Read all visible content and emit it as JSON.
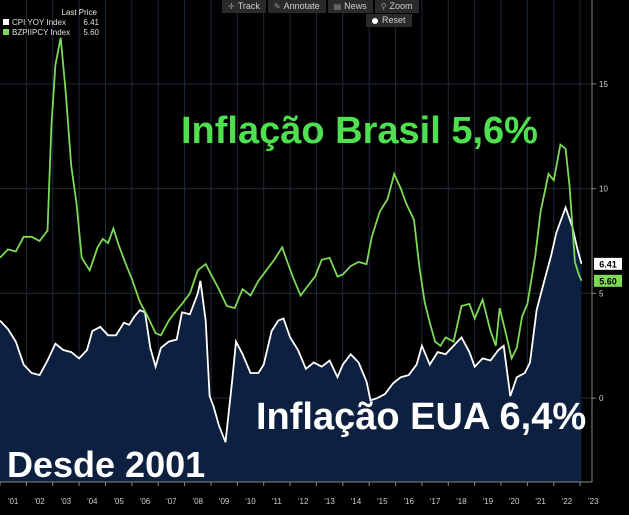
{
  "toolbar": {
    "track_label": "Track",
    "annotate_label": "Annotate",
    "news_label": "News",
    "zoom_label": "Zoom",
    "reset_label": "Reset"
  },
  "legend": {
    "title": "Last Price",
    "items": [
      {
        "name": "CPI YOY Index",
        "value": "6.41",
        "color": "#ffffff"
      },
      {
        "name": "BZPIIPCY Index",
        "value": "5.60",
        "color": "#7ed957"
      }
    ]
  },
  "annotations": {
    "brazil": "Inflação Brasil 5,6%",
    "usa": "Inflação EUA 6,4%",
    "since": "Desde 2001"
  },
  "chart_data": {
    "type": "line",
    "x_tick_labels": [
      "'01",
      "'02",
      "'03",
      "'04",
      "'05",
      "'06",
      "'07",
      "'08",
      "'09",
      "'10",
      "'11",
      "'12",
      "'13",
      "'14",
      "'15",
      "'16",
      "'17",
      "'18",
      "'19",
      "'20",
      "'21",
      "'22",
      "'23"
    ],
    "y_tick_labels": [
      "0",
      "5",
      "10",
      "15"
    ],
    "ylim": [
      -4,
      19
    ],
    "grid": true,
    "legend": "top-left",
    "series": [
      {
        "name": "CPI YOY Index",
        "color": "#ffffff",
        "fill": "#0d2040",
        "last_value": "6.41",
        "points": [
          [
            2001.0,
            3.7
          ],
          [
            2001.3,
            3.3
          ],
          [
            2001.6,
            2.7
          ],
          [
            2001.9,
            1.6
          ],
          [
            2002.2,
            1.2
          ],
          [
            2002.5,
            1.1
          ],
          [
            2002.8,
            1.8
          ],
          [
            2003.1,
            2.6
          ],
          [
            2003.4,
            2.3
          ],
          [
            2003.7,
            2.2
          ],
          [
            2004.0,
            1.9
          ],
          [
            2004.3,
            2.3
          ],
          [
            2004.5,
            3.2
          ],
          [
            2004.8,
            3.4
          ],
          [
            2005.1,
            3.0
          ],
          [
            2005.4,
            3.0
          ],
          [
            2005.7,
            3.6
          ],
          [
            2005.9,
            3.5
          ],
          [
            2006.1,
            3.9
          ],
          [
            2006.3,
            4.2
          ],
          [
            2006.5,
            4.1
          ],
          [
            2006.7,
            2.4
          ],
          [
            2006.9,
            1.5
          ],
          [
            2007.1,
            2.4
          ],
          [
            2007.4,
            2.7
          ],
          [
            2007.7,
            2.8
          ],
          [
            2007.9,
            4.1
          ],
          [
            2008.2,
            4.0
          ],
          [
            2008.5,
            5.0
          ],
          [
            2008.6,
            5.6
          ],
          [
            2008.8,
            3.7
          ],
          [
            2008.95,
            0.1
          ],
          [
            2009.1,
            -0.4
          ],
          [
            2009.3,
            -1.3
          ],
          [
            2009.55,
            -2.1
          ],
          [
            2009.8,
            0.8
          ],
          [
            2009.95,
            2.7
          ],
          [
            2010.2,
            2.1
          ],
          [
            2010.5,
            1.2
          ],
          [
            2010.8,
            1.2
          ],
          [
            2011.0,
            1.6
          ],
          [
            2011.3,
            3.2
          ],
          [
            2011.55,
            3.7
          ],
          [
            2011.75,
            3.8
          ],
          [
            2012.0,
            2.9
          ],
          [
            2012.3,
            2.3
          ],
          [
            2012.6,
            1.4
          ],
          [
            2012.9,
            1.7
          ],
          [
            2013.2,
            1.5
          ],
          [
            2013.5,
            1.8
          ],
          [
            2013.8,
            1.0
          ],
          [
            2014.0,
            1.6
          ],
          [
            2014.3,
            2.1
          ],
          [
            2014.6,
            1.7
          ],
          [
            2014.9,
            0.8
          ],
          [
            2015.05,
            -0.1
          ],
          [
            2015.3,
            0.0
          ],
          [
            2015.6,
            0.2
          ],
          [
            2015.9,
            0.7
          ],
          [
            2016.2,
            1.0
          ],
          [
            2016.5,
            1.1
          ],
          [
            2016.8,
            1.6
          ],
          [
            2017.0,
            2.5
          ],
          [
            2017.3,
            1.6
          ],
          [
            2017.6,
            2.2
          ],
          [
            2017.9,
            2.1
          ],
          [
            2018.2,
            2.5
          ],
          [
            2018.5,
            2.9
          ],
          [
            2018.8,
            2.2
          ],
          [
            2019.0,
            1.5
          ],
          [
            2019.3,
            1.9
          ],
          [
            2019.6,
            1.8
          ],
          [
            2019.9,
            2.3
          ],
          [
            2020.1,
            2.5
          ],
          [
            2020.35,
            0.1
          ],
          [
            2020.6,
            1.0
          ],
          [
            2020.9,
            1.2
          ],
          [
            2021.1,
            1.7
          ],
          [
            2021.35,
            4.2
          ],
          [
            2021.6,
            5.4
          ],
          [
            2021.9,
            6.8
          ],
          [
            2022.1,
            7.9
          ],
          [
            2022.45,
            9.1
          ],
          [
            2022.7,
            8.2
          ],
          [
            2022.9,
            7.1
          ],
          [
            2023.05,
            6.41
          ]
        ]
      },
      {
        "name": "BZPIIPCY Index",
        "color": "#7ed957",
        "last_value": "5.60",
        "points": [
          [
            2001.0,
            6.7
          ],
          [
            2001.3,
            7.1
          ],
          [
            2001.6,
            7.0
          ],
          [
            2001.9,
            7.7
          ],
          [
            2002.2,
            7.7
          ],
          [
            2002.5,
            7.5
          ],
          [
            2002.8,
            8.0
          ],
          [
            2002.95,
            13.0
          ],
          [
            2003.1,
            15.9
          ],
          [
            2003.3,
            17.2
          ],
          [
            2003.5,
            14.5
          ],
          [
            2003.7,
            11.1
          ],
          [
            2003.9,
            9.3
          ],
          [
            2004.1,
            6.7
          ],
          [
            2004.4,
            6.1
          ],
          [
            2004.7,
            7.2
          ],
          [
            2004.9,
            7.6
          ],
          [
            2005.1,
            7.4
          ],
          [
            2005.3,
            8.1
          ],
          [
            2005.5,
            7.3
          ],
          [
            2005.8,
            6.3
          ],
          [
            2006.0,
            5.7
          ],
          [
            2006.3,
            4.6
          ],
          [
            2006.6,
            3.9
          ],
          [
            2006.9,
            3.1
          ],
          [
            2007.1,
            3.0
          ],
          [
            2007.4,
            3.7
          ],
          [
            2007.7,
            4.2
          ],
          [
            2007.9,
            4.5
          ],
          [
            2008.2,
            5.0
          ],
          [
            2008.5,
            6.1
          ],
          [
            2008.8,
            6.4
          ],
          [
            2009.0,
            5.9
          ],
          [
            2009.3,
            5.2
          ],
          [
            2009.6,
            4.4
          ],
          [
            2009.9,
            4.3
          ],
          [
            2010.2,
            5.2
          ],
          [
            2010.5,
            4.9
          ],
          [
            2010.8,
            5.6
          ],
          [
            2011.1,
            6.1
          ],
          [
            2011.4,
            6.6
          ],
          [
            2011.7,
            7.2
          ],
          [
            2011.9,
            6.5
          ],
          [
            2012.1,
            5.8
          ],
          [
            2012.4,
            4.9
          ],
          [
            2012.7,
            5.4
          ],
          [
            2012.95,
            5.8
          ],
          [
            2013.2,
            6.6
          ],
          [
            2013.5,
            6.7
          ],
          [
            2013.8,
            5.8
          ],
          [
            2014.0,
            5.9
          ],
          [
            2014.3,
            6.3
          ],
          [
            2014.6,
            6.5
          ],
          [
            2014.9,
            6.4
          ],
          [
            2015.1,
            7.7
          ],
          [
            2015.4,
            8.9
          ],
          [
            2015.7,
            9.5
          ],
          [
            2015.95,
            10.7
          ],
          [
            2016.2,
            10.0
          ],
          [
            2016.4,
            9.3
          ],
          [
            2016.7,
            8.5
          ],
          [
            2016.9,
            6.3
          ],
          [
            2017.1,
            4.6
          ],
          [
            2017.3,
            3.6
          ],
          [
            2017.5,
            2.7
          ],
          [
            2017.7,
            2.5
          ],
          [
            2017.9,
            2.9
          ],
          [
            2018.2,
            2.7
          ],
          [
            2018.5,
            4.4
          ],
          [
            2018.8,
            4.5
          ],
          [
            2019.0,
            3.8
          ],
          [
            2019.3,
            4.7
          ],
          [
            2019.6,
            3.2
          ],
          [
            2019.8,
            2.5
          ],
          [
            2019.95,
            4.3
          ],
          [
            2020.2,
            3.0
          ],
          [
            2020.4,
            1.9
          ],
          [
            2020.6,
            2.4
          ],
          [
            2020.8,
            3.9
          ],
          [
            2021.0,
            4.5
          ],
          [
            2021.3,
            6.8
          ],
          [
            2021.5,
            8.9
          ],
          [
            2021.8,
            10.7
          ],
          [
            2022.0,
            10.4
          ],
          [
            2022.25,
            12.1
          ],
          [
            2022.45,
            11.9
          ],
          [
            2022.6,
            10.1
          ],
          [
            2022.8,
            6.5
          ],
          [
            2022.95,
            5.9
          ],
          [
            2023.05,
            5.6
          ]
        ]
      }
    ]
  }
}
